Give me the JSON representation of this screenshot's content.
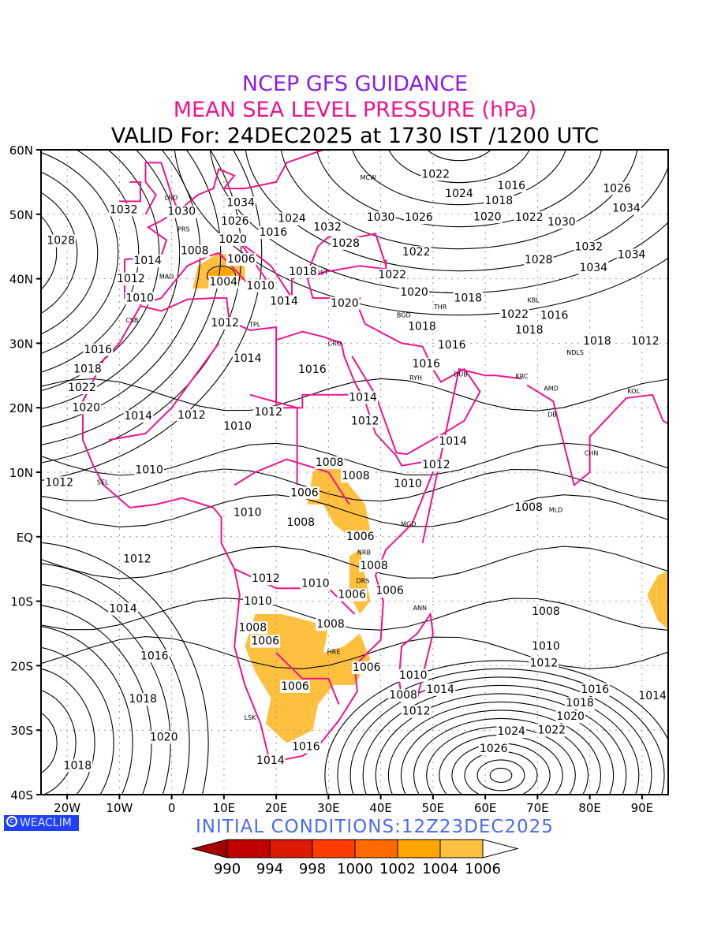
{
  "titles": {
    "line1": "NCEP GFS GUIDANCE",
    "line2": "MEAN SEA LEVEL PRESSURE (hPa)",
    "line3": "VALID For: 24DEC2025 at 1730 IST /1200 UTC"
  },
  "initial_conditions": "INITIAL  CONDITIONS:12Z23DEC2025",
  "logo": "WEACLIM",
  "axes": {
    "lat_labels": [
      [
        "60N",
        60
      ],
      [
        "50N",
        50
      ],
      [
        "40N",
        40
      ],
      [
        "30N",
        30
      ],
      [
        "20N",
        20
      ],
      [
        "10N",
        10
      ],
      [
        "EQ",
        0
      ],
      [
        "10S",
        -10
      ],
      [
        "20S",
        -20
      ],
      [
        "30S",
        -30
      ],
      [
        "40S",
        -40
      ]
    ],
    "lon_labels": [
      [
        "20W",
        -20
      ],
      [
        "10W",
        -10
      ],
      [
        "0",
        0
      ],
      [
        "10E",
        10
      ],
      [
        "20E",
        20
      ],
      [
        "30E",
        30
      ],
      [
        "40E",
        40
      ],
      [
        "50E",
        50
      ],
      [
        "60E",
        60
      ],
      [
        "70E",
        70
      ],
      [
        "80E",
        80
      ],
      [
        "90E",
        90
      ]
    ],
    "lon_range": [
      -25,
      95
    ],
    "lat_range": [
      -40,
      60
    ]
  },
  "colorbar": {
    "colors": [
      "#a50000",
      "#c20000",
      "#dc1a00",
      "#ff3c00",
      "#ff6a00",
      "#ffa500",
      "#ffc040",
      "#ffffff"
    ],
    "labels": [
      "990",
      "994",
      "998",
      "1000",
      "1002",
      "1004",
      "1006"
    ]
  },
  "colors": {
    "coast": "#f0148c",
    "contour": "#000000",
    "shade_1006": "#ffc040",
    "shade_1004": "#ffa500"
  },
  "chart_data": {
    "type": "contour-map",
    "variable": "Mean sea level pressure (hPa)",
    "contour_labels": [
      {
        "v": "1022",
        "lon": 50.5,
        "lat": 56.3
      },
      {
        "v": "1024",
        "lon": 55,
        "lat": 53.3
      },
      {
        "v": "1032",
        "lon": -9.2,
        "lat": 50.8
      },
      {
        "v": "1030",
        "lon": 1.9,
        "lat": 50.5
      },
      {
        "v": "1034",
        "lon": 13.2,
        "lat": 51.9
      },
      {
        "v": "1026",
        "lon": 12.1,
        "lat": 50.1
      },
      {
        "v": "1020",
        "lon": 11.7,
        "lat": 48.4
      },
      {
        "v": "1016",
        "lon": 14,
        "lat": 47.3
      },
      {
        "v": "1024",
        "lon": 23,
        "lat": 48.3
      },
      {
        "v": "1032",
        "lon": 29.8,
        "lat": 48.1
      },
      {
        "v": "1030",
        "lon": 40,
        "lat": 49.6
      },
      {
        "v": "1026",
        "lon": 47.3,
        "lat": 49.6
      },
      {
        "v": "1028",
        "lon": 33.3,
        "lat": 45.6
      },
      {
        "v": "1028",
        "lon": -21.2,
        "lat": 46
      },
      {
        "v": "1008",
        "lon": 4.4,
        "lat": 44.4
      },
      {
        "v": "1006",
        "lon": 13.3,
        "lat": 44.2
      },
      {
        "v": "1014",
        "lon": -4.6,
        "lat": 42.9
      },
      {
        "v": "1022",
        "lon": 46.8,
        "lat": 44.2
      },
      {
        "v": "1012",
        "lon": -7.8,
        "lat": 40.1
      },
      {
        "v": "1004",
        "lon": 9.9,
        "lat": 39.6
      },
      {
        "v": "1010",
        "lon": 17,
        "lat": 39
      },
      {
        "v": "1018",
        "lon": 25.1,
        "lat": 41.2
      },
      {
        "v": "1022",
        "lon": 42.2,
        "lat": 40.7
      },
      {
        "v": "1010",
        "lon": -6.1,
        "lat": 38.2
      },
      {
        "v": "1014",
        "lon": 21.5,
        "lat": 36.6
      },
      {
        "v": "1020",
        "lon": 33.1,
        "lat": 36.3
      },
      {
        "v": "1020",
        "lon": 46.4,
        "lat": 38
      },
      {
        "v": "1018",
        "lon": 56.7,
        "lat": 37.1
      },
      {
        "v": "1012",
        "lon": 10.2,
        "lat": 33.2
      },
      {
        "v": "1018",
        "lon": 47.9,
        "lat": 32.7
      },
      {
        "v": "1016",
        "lon": 53.6,
        "lat": 29.8
      },
      {
        "v": "1016",
        "lon": -14.1,
        "lat": 29.1
      },
      {
        "v": "1018",
        "lon": -16.1,
        "lat": 27.2
      },
      {
        "v": "1022",
        "lon": -23.5,
        "lat": 26.5
      },
      {
        "v": "1020",
        "lon": -22.7,
        "lat": 23.4
      },
      {
        "v": "1014",
        "lon": 14.5,
        "lat": 27.7
      },
      {
        "v": "1016",
        "lon": 26.9,
        "lat": 26
      },
      {
        "v": "1016",
        "lon": 48.7,
        "lat": 28
      },
      {
        "v": "1014",
        "lon": 36.6,
        "lat": 21.7
      },
      {
        "v": "1014",
        "lon": -6.4,
        "lat": 18.8
      },
      {
        "v": "1012",
        "lon": 3.8,
        "lat": 18.9
      },
      {
        "v": "1012",
        "lon": 18.5,
        "lat": 19.4
      },
      {
        "v": "1010",
        "lon": 12.6,
        "lat": 17.2
      },
      {
        "v": "1012",
        "lon": 37,
        "lat": 18
      },
      {
        "v": "1014",
        "lon": 53.8,
        "lat": 14.9
      },
      {
        "v": "1012",
        "lon": 50.6,
        "lat": 11.2
      },
      {
        "v": "1008",
        "lon": 30.2,
        "lat": 11.6
      },
      {
        "v": "1008",
        "lon": 35.2,
        "lat": 9.5
      },
      {
        "v": "1010",
        "lon": 45.2,
        "lat": 9.4
      },
      {
        "v": "1010",
        "lon": -4.3,
        "lat": 10.4
      },
      {
        "v": "1012",
        "lon": -21.5,
        "lat": 8.5
      },
      {
        "v": "1006",
        "lon": 25.4,
        "lat": 6.9
      },
      {
        "v": "1010",
        "lon": 14.5,
        "lat": 3.8
      },
      {
        "v": "1008",
        "lon": 24.7,
        "lat": 2.3
      },
      {
        "v": "1008",
        "lon": 68.3,
        "lat": 4.6
      },
      {
        "v": "1006",
        "lon": 36.1,
        "lat": 0.1
      },
      {
        "v": "1012",
        "lon": -6.6,
        "lat": -3.4
      },
      {
        "v": "1008",
        "lon": 38.7,
        "lat": -4.4
      },
      {
        "v": "1012",
        "lon": 18,
        "lat": -6.4
      },
      {
        "v": "1010",
        "lon": 27.5,
        "lat": -7.2
      },
      {
        "v": "1006",
        "lon": 34.5,
        "lat": -8.9
      },
      {
        "v": "1006",
        "lon": 37.5,
        "lat": -6.1
      },
      {
        "v": "1010",
        "lon": 16.5,
        "lat": -9.9
      },
      {
        "v": "1014",
        "lon": -9.3,
        "lat": -11.1
      },
      {
        "v": "1008",
        "lon": 71.6,
        "lat": -11.5
      },
      {
        "v": "1008",
        "lon": 15.5,
        "lat": -14
      },
      {
        "v": "1006",
        "lon": 17.9,
        "lat": -15
      },
      {
        "v": "1008",
        "lon": 30.4,
        "lat": -13.5
      },
      {
        "v": "1016",
        "lon": -3.3,
        "lat": -18.4
      },
      {
        "v": "1010",
        "lon": 71.6,
        "lat": -16.9
      },
      {
        "v": "1012",
        "lon": 71.2,
        "lat": -19.5
      },
      {
        "v": "1006",
        "lon": 37.3,
        "lat": -20.2
      },
      {
        "v": "1010",
        "lon": 46.2,
        "lat": -21.4
      },
      {
        "v": "1008",
        "lon": 44.3,
        "lat": -23.4
      },
      {
        "v": "1012",
        "lon": 46.8,
        "lat": -24.8
      },
      {
        "v": "1014",
        "lon": 51.4,
        "lat": -23.6
      },
      {
        "v": "1006",
        "lon": 23.6,
        "lat": -23.1
      },
      {
        "v": "1018",
        "lon": -5.5,
        "lat": -25.1
      },
      {
        "v": "1016",
        "lon": 81,
        "lat": -23.6
      },
      {
        "v": "1014",
        "lon": 92,
        "lat": -24.6
      },
      {
        "v": "1018",
        "lon": 78.1,
        "lat": -25.7
      },
      {
        "v": "1020",
        "lon": 76.3,
        "lat": -27.8
      },
      {
        "v": "1022",
        "lon": 72.7,
        "lat": -28.8
      },
      {
        "v": "1024",
        "lon": 67.7,
        "lat": -30.1
      },
      {
        "v": "1026",
        "lon": 61.6,
        "lat": -31.7
      },
      {
        "v": "1020",
        "lon": -1.5,
        "lat": -31
      },
      {
        "v": "1016",
        "lon": 25.7,
        "lat": -32.5
      },
      {
        "v": "1014",
        "lon": 18.9,
        "lat": -34.6
      },
      {
        "v": "1018",
        "lon": -18,
        "lat": -35.4
      },
      {
        "v": "1026",
        "lon": 85.2,
        "lat": 54.1
      },
      {
        "v": "1034",
        "lon": 87,
        "lat": 51
      },
      {
        "v": "1030",
        "lon": 74.6,
        "lat": 48.9
      },
      {
        "v": "1022",
        "lon": 68.4,
        "lat": 49.6
      },
      {
        "v": "1020",
        "lon": 60.4,
        "lat": 49.7
      },
      {
        "v": "1018",
        "lon": 62.6,
        "lat": 51.1
      },
      {
        "v": "1016",
        "lon": 65,
        "lat": 52.3
      },
      {
        "v": "1028",
        "lon": 70.2,
        "lat": 43
      },
      {
        "v": "1034",
        "lon": 80.7,
        "lat": 41.8
      },
      {
        "v": "1032",
        "lon": 79.8,
        "lat": 45
      },
      {
        "v": "1034",
        "lon": 88,
        "lat": 43.8
      },
      {
        "v": "1022",
        "lon": 65.6,
        "lat": 34.6
      },
      {
        "v": "1018",
        "lon": 68.4,
        "lat": 32.1
      },
      {
        "v": "1016",
        "lon": 71.1,
        "lat": 33.3
      },
      {
        "v": "1012",
        "lon": 90.6,
        "lat": 30.4
      },
      {
        "v": "1018",
        "lon": 81.4,
        "lat": 30.4
      }
    ],
    "station_labels": [
      {
        "v": "MCW",
        "lon": 37.6,
        "lat": 55.7
      },
      {
        "v": "LND",
        "lon": -0.1,
        "lat": 51.5
      },
      {
        "v": "PRS",
        "lon": 2.3,
        "lat": 48.8
      },
      {
        "v": "MAD",
        "lon": -3.7,
        "lat": 40.4
      },
      {
        "v": "IST",
        "lon": 29,
        "lat": 41
      },
      {
        "v": "CSB",
        "lon": -7.6,
        "lat": 33.6
      },
      {
        "v": "TPL",
        "lon": 13.2,
        "lat": 32.9
      },
      {
        "v": "CRO",
        "lon": 31.2,
        "lat": 30
      },
      {
        "v": "BGD",
        "lon": 44.4,
        "lat": 33.3
      },
      {
        "v": "THR",
        "lon": 51.4,
        "lat": 35.7
      },
      {
        "v": "KBL",
        "lon": 69.2,
        "lat": 34.5
      },
      {
        "v": "RYH",
        "lon": 46.7,
        "lat": 24.7
      },
      {
        "v": "DUB",
        "lon": 55.3,
        "lat": 25.2
      },
      {
        "v": "KRC",
        "lon": 67,
        "lat": 24.9
      },
      {
        "v": "AMD",
        "lon": 72.6,
        "lat": 23
      },
      {
        "v": "NDLS",
        "lon": 77.2,
        "lat": 28.6
      },
      {
        "v": "KOL",
        "lon": 88.4,
        "lat": 22.6
      },
      {
        "v": "DB",
        "lon": 72.8,
        "lat": 19
      },
      {
        "v": "CHN",
        "lon": 80.3,
        "lat": 13
      },
      {
        "v": "SEL",
        "lon": -13.2,
        "lat": 8.5
      },
      {
        "v": "MGD",
        "lon": 45.3,
        "lat": 2
      },
      {
        "v": "NRB",
        "lon": 36.8,
        "lat": -1.3
      },
      {
        "v": "DRS",
        "lon": 39.3,
        "lat": -6.8
      },
      {
        "v": "ANN",
        "lon": 47.5,
        "lat": -11
      },
      {
        "v": "HRE",
        "lon": 31,
        "lat": -17.8
      },
      {
        "v": "LSK",
        "lon": 15,
        "lat": -28
      },
      {
        "v": "MLD",
        "lon": 73.5,
        "lat": 4.2
      }
    ],
    "shaded_regions_below_hPa": 1006
  }
}
